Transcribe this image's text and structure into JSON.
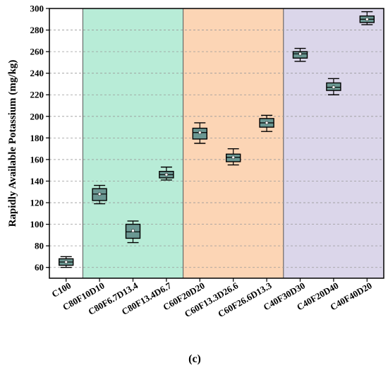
{
  "chart_data": {
    "type": "box",
    "ylabel": "Rapidly Available Potassium (mg/kg)",
    "ylim": [
      50,
      300
    ],
    "yticks": [
      60,
      80,
      100,
      120,
      140,
      160,
      180,
      200,
      220,
      240,
      260,
      280,
      300
    ],
    "caption": "(c)",
    "grid": true,
    "categories": [
      "C100",
      "C80F10D10",
      "C80F6.7D13.4",
      "C80F13.4D6.7",
      "C60F20D20",
      "C60F13.3D26.6",
      "C60F26.6D13.3",
      "C40F30D30",
      "C40F20D40",
      "C40F40D20"
    ],
    "boxes": [
      {
        "min": 60,
        "q1": 62,
        "median": 65,
        "mean": 65,
        "q3": 68,
        "max": 70
      },
      {
        "min": 119,
        "q1": 122,
        "median": 128,
        "mean": 128,
        "q3": 133,
        "max": 136
      },
      {
        "min": 83,
        "q1": 87,
        "median": 93,
        "mean": 94,
        "q3": 100,
        "max": 103
      },
      {
        "min": 141,
        "q1": 143,
        "median": 146,
        "mean": 146,
        "q3": 149,
        "max": 153
      },
      {
        "min": 175,
        "q1": 179,
        "median": 185,
        "mean": 185,
        "q3": 189,
        "max": 194
      },
      {
        "min": 155,
        "q1": 158,
        "median": 162,
        "mean": 162,
        "q3": 165,
        "max": 170
      },
      {
        "min": 186,
        "q1": 190,
        "median": 194,
        "mean": 194,
        "q3": 198,
        "max": 201
      },
      {
        "min": 251,
        "q1": 254,
        "median": 258,
        "mean": 258,
        "q3": 260,
        "max": 263
      },
      {
        "min": 220,
        "q1": 224,
        "median": 227,
        "mean": 227,
        "q3": 231,
        "max": 235
      },
      {
        "min": 285,
        "q1": 287,
        "median": 290,
        "mean": 290,
        "q3": 293,
        "max": 297
      }
    ],
    "bands": [
      {
        "from": 1,
        "to": 3,
        "color": "#b8ecd7"
      },
      {
        "from": 4,
        "to": 6,
        "color": "#fcd5b5"
      },
      {
        "from": 7,
        "to": 9,
        "color": "#dbd6ea"
      }
    ],
    "box_fill": "#6a9792",
    "box_stroke": "#000000"
  }
}
